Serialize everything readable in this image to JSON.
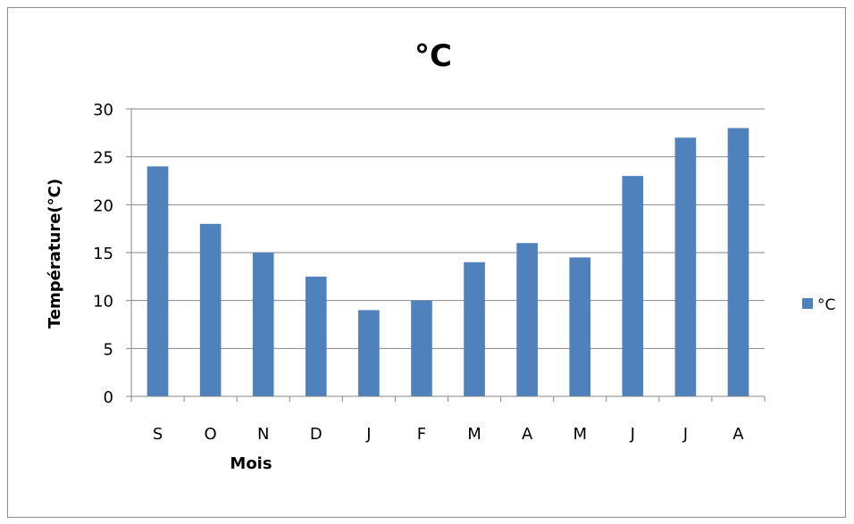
{
  "chart_data": {
    "type": "bar",
    "title": "°C",
    "xlabel": "Mois",
    "ylabel": "Température(°C)",
    "categories": [
      "S",
      "O",
      "N",
      "D",
      "J",
      "F",
      "M",
      "A",
      "M",
      "J",
      "J",
      "A"
    ],
    "series": [
      {
        "name": "°C",
        "values": [
          24,
          18,
          15,
          12.5,
          9,
          10,
          14,
          16,
          14.5,
          23,
          27,
          28
        ]
      }
    ],
    "ylim": [
      0,
      30
    ],
    "yticks": [
      "0",
      "5",
      "10",
      "15",
      "20",
      "25",
      "30"
    ],
    "grid": true,
    "legend": "right",
    "colors": {
      "bar": "#4f81bd",
      "grid": "#878787",
      "axis": "#878787"
    }
  }
}
